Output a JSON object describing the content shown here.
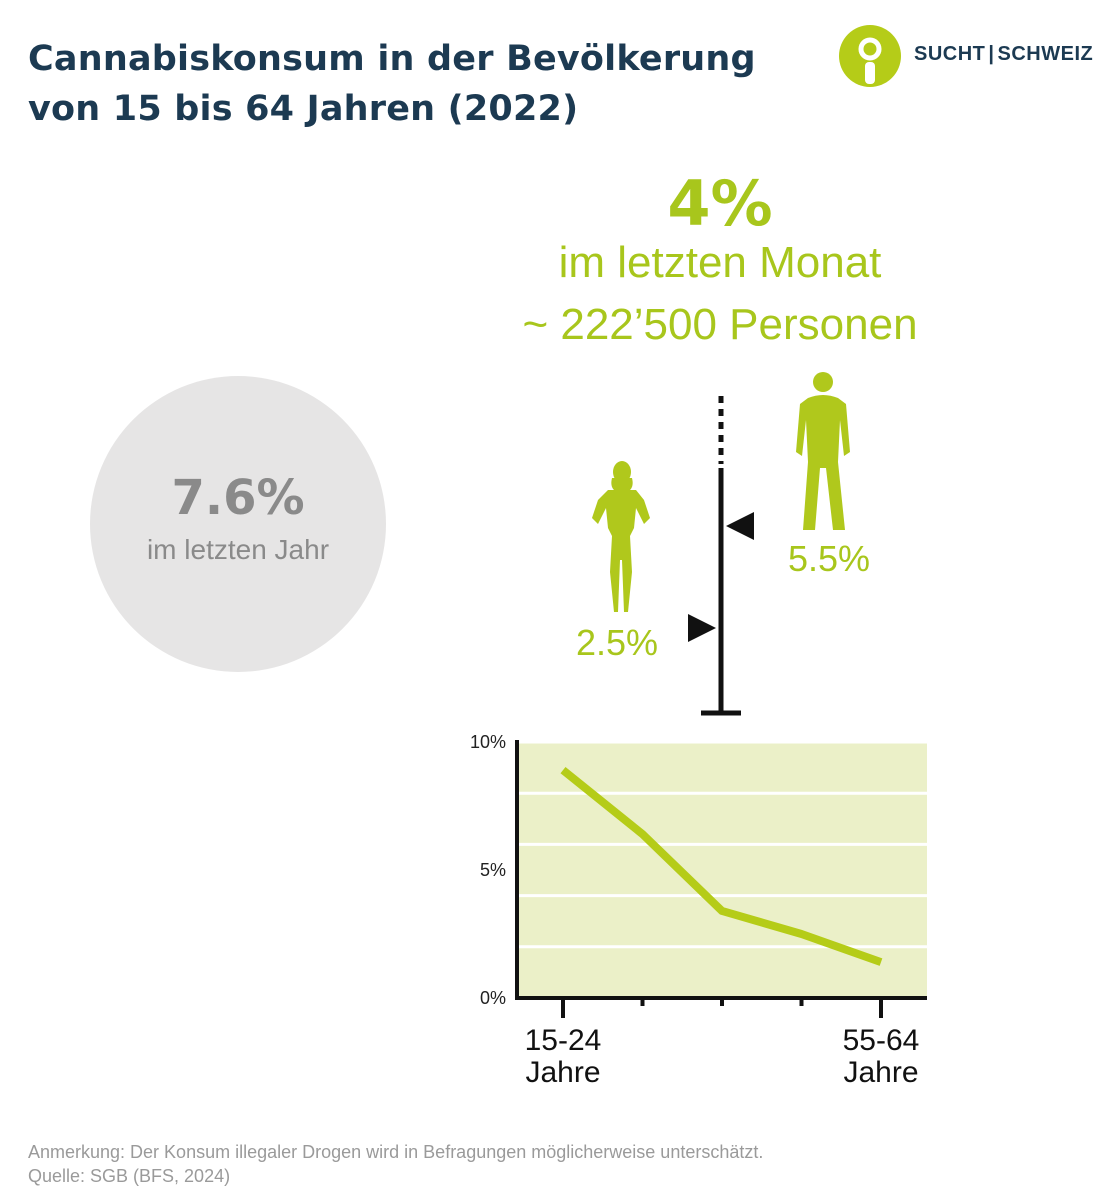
{
  "header": {
    "title_line1": "Cannabiskonsum in der Bevölkerung",
    "title_line2": "von 15 bis 64 Jahren (2022)"
  },
  "logo": {
    "left": "SUCHT",
    "separator": "|",
    "right": "SCHWEIZ",
    "color_primary": "#b5cc18",
    "color_text": "#1c3a52"
  },
  "month_stat": {
    "value": "4%",
    "label": "im letzten Monat",
    "persons": "~ 222’500 Personen"
  },
  "year_stat": {
    "value": "7.6%",
    "label": "im letzten Jahr"
  },
  "gender": {
    "women": {
      "value": 2.5,
      "label": "2.5%",
      "icon": "woman-icon"
    },
    "men": {
      "value": 5.5,
      "label": "5.5%",
      "icon": "man-icon"
    },
    "average": 4
  },
  "colors": {
    "accent": "#a8c61c",
    "title": "#1c3a52",
    "circle": "#e6e5e5",
    "chart_bg": "#ebf0c8",
    "gray_text": "#8a8a8a"
  },
  "chart_data": {
    "type": "line",
    "x": [
      0,
      1,
      2,
      3,
      4
    ],
    "series": [
      {
        "values": [
          8.9,
          6.4,
          3.4,
          2.5,
          1.4
        ]
      }
    ],
    "ylim": [
      0,
      10
    ],
    "yticks": [
      "0%",
      "5%",
      "10%"
    ],
    "ytick_values": [
      0,
      5,
      10
    ],
    "x_labels": [
      {
        "index": 0,
        "line1": "15-24",
        "line2": "Jahre"
      },
      {
        "index": 4,
        "line1": "55-64",
        "line2": "Jahre"
      }
    ],
    "grid": true
  },
  "footer": {
    "note": "Anmerkung: Der Konsum illegaler Drogen wird in Befragungen möglicherweise unterschätzt.",
    "source": "Quelle: SGB (BFS, 2024)"
  }
}
